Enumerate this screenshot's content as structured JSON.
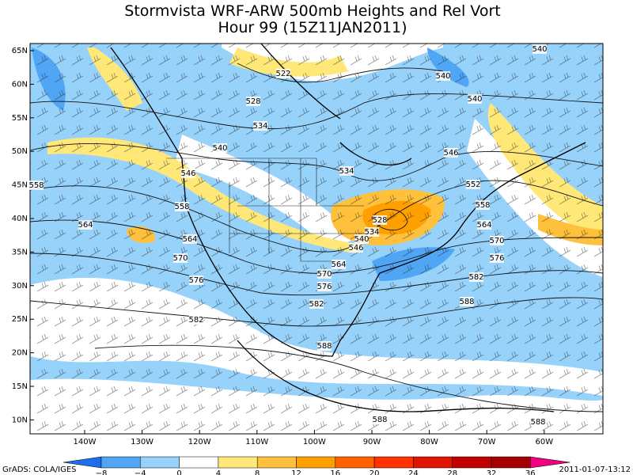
{
  "title": [
    "Stormvista WRF-ARW 500mb Heights and Rel Vort",
    "Hour 99 (15Z11JAN2011)"
  ],
  "latitude_labels": [
    "65N",
    "60N",
    "55N",
    "50N",
    "45N",
    "40N",
    "35N",
    "30N",
    "25N",
    "20N",
    "15N",
    "10N"
  ],
  "longitude_labels": [
    "140W",
    "130W",
    "120W",
    "110W",
    "100W",
    "90W",
    "80W",
    "70W",
    "60W"
  ],
  "contour_labels": [
    540,
    522,
    540,
    528,
    540,
    534,
    540,
    546,
    534,
    546,
    552,
    558,
    558,
    558,
    528,
    564,
    564,
    534,
    540,
    564,
    570,
    546,
    570,
    576,
    564,
    570,
    582,
    576,
    576,
    582,
    588,
    582,
    588,
    588,
    588
  ],
  "colorbar": {
    "labels": [
      "−8",
      "−4",
      "0",
      "4",
      "8",
      "12",
      "16",
      "20",
      "24",
      "28",
      "32",
      "36"
    ]
  },
  "footer": {
    "left": "GrADS: COLA/IGES",
    "right": "2011-01-07-13:12"
  }
}
